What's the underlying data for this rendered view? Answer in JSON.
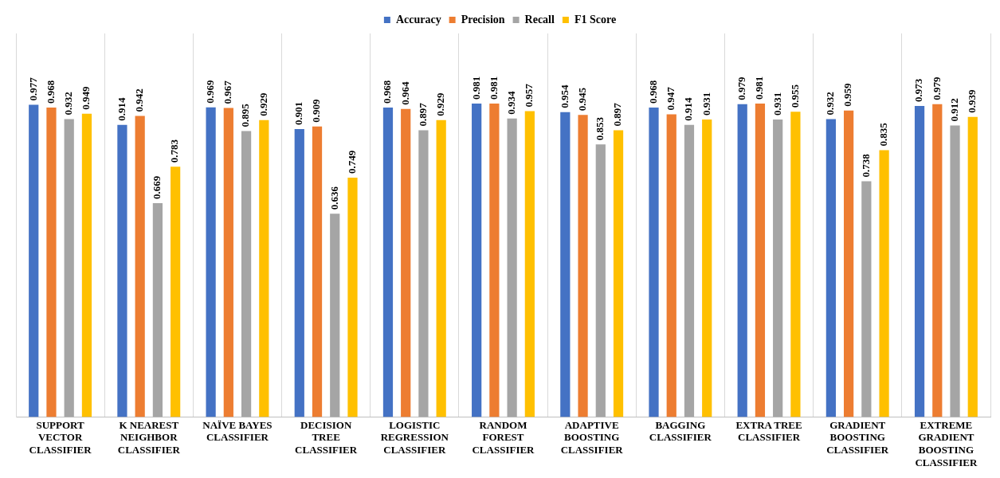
{
  "chart_data": {
    "type": "bar",
    "categories": [
      "SUPPORT VECTOR CLASSIFIER",
      "K NEAREST NEIGHBOR CLASSIFIER",
      "NAÏVE BAYES CLASSIFIER",
      "DECISION TREE CLASSIFIER",
      "LOGISTIC REGRESSION CLASSIFIER",
      "RANDOM FOREST CLASSIFIER",
      "ADAPTIVE BOOSTING CLASSIFIER",
      "BAGGING CLASSIFIER",
      "EXTRA TREE CLASSIFIER",
      "GRADIENT BOOSTING CLASSIFIER",
      "EXTREME GRADIENT BOOSTING CLASSIFIER"
    ],
    "series": [
      {
        "name": "Accuracy",
        "color": "#4472c4",
        "values": [
          0.977,
          0.914,
          0.969,
          0.901,
          0.968,
          0.981,
          0.954,
          0.968,
          0.979,
          0.932,
          0.973
        ]
      },
      {
        "name": "Precision",
        "color": "#ed7d31",
        "values": [
          0.968,
          0.942,
          0.967,
          0.909,
          0.964,
          0.981,
          0.945,
          0.947,
          0.981,
          0.959,
          0.979
        ]
      },
      {
        "name": "Recall",
        "color": "#a5a5a5",
        "values": [
          0.932,
          0.669,
          0.895,
          0.636,
          0.897,
          0.934,
          0.853,
          0.914,
          0.931,
          0.738,
          0.912
        ]
      },
      {
        "name": "F1 Score",
        "color": "#ffc000",
        "values": [
          0.949,
          0.783,
          0.929,
          0.749,
          0.929,
          0.957,
          0.897,
          0.931,
          0.955,
          0.835,
          0.939
        ]
      }
    ],
    "ylim": [
      0,
      1.2
    ],
    "tick_labels": "x",
    "grid": "x",
    "legend": "top",
    "data_labels": true
  }
}
